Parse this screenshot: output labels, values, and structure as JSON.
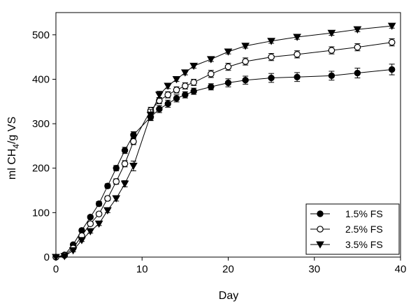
{
  "chart_data": {
    "type": "line",
    "title": "",
    "xlabel": "Day",
    "ylabel_parts": {
      "pre": "ml CH",
      "sub": "4",
      "post": "/g VS"
    },
    "xlim": [
      0,
      40
    ],
    "ylim": [
      0,
      550
    ],
    "xticks": [
      0,
      10,
      20,
      30,
      40
    ],
    "yticks": [
      0,
      100,
      200,
      300,
      400,
      500
    ],
    "grid": false,
    "legend_position": "bottom-right",
    "series": [
      {
        "name": "1.5% FS",
        "marker": "circle-filled",
        "x": [
          0,
          1,
          2,
          3,
          4,
          5,
          6,
          7,
          8,
          9,
          11,
          12,
          13,
          14,
          15,
          16,
          18,
          20,
          22,
          25,
          28,
          32,
          35,
          39
        ],
        "y": [
          0,
          5,
          28,
          60,
          90,
          120,
          160,
          200,
          240,
          275,
          315,
          333,
          345,
          357,
          365,
          373,
          383,
          392,
          398,
          403,
          405,
          408,
          414,
          422
        ],
        "err": [
          0,
          2,
          3,
          4,
          4,
          5,
          5,
          6,
          7,
          7,
          8,
          8,
          8,
          8,
          7,
          7,
          7,
          9,
          9,
          10,
          10,
          10,
          11,
          12
        ]
      },
      {
        "name": "2.5% FS",
        "marker": "circle-open",
        "x": [
          0,
          1,
          2,
          3,
          4,
          5,
          6,
          7,
          8,
          9,
          11,
          12,
          13,
          14,
          15,
          16,
          18,
          20,
          22,
          25,
          28,
          32,
          35,
          39
        ],
        "y": [
          0,
          4,
          20,
          48,
          75,
          97,
          132,
          170,
          210,
          260,
          330,
          352,
          365,
          376,
          385,
          393,
          412,
          428,
          440,
          450,
          456,
          465,
          472,
          483
        ],
        "err": [
          0,
          2,
          3,
          3,
          4,
          4,
          5,
          6,
          7,
          7,
          7,
          7,
          7,
          7,
          7,
          7,
          8,
          8,
          8,
          8,
          8,
          8,
          8,
          8
        ]
      },
      {
        "name": "3.5% FS",
        "marker": "triangle-down-filled",
        "x": [
          0,
          1,
          2,
          3,
          4,
          5,
          6,
          7,
          8,
          9,
          11,
          12,
          13,
          14,
          15,
          16,
          18,
          20,
          22,
          25,
          28,
          32,
          35,
          39
        ],
        "y": [
          0,
          2,
          15,
          38,
          58,
          75,
          105,
          132,
          165,
          205,
          320,
          365,
          385,
          400,
          415,
          430,
          445,
          462,
          475,
          486,
          495,
          504,
          512,
          520
        ],
        "err": [
          0,
          2,
          3,
          3,
          4,
          4,
          5,
          6,
          7,
          11,
          12,
          8,
          6,
          5,
          5,
          5,
          5,
          5,
          5,
          5,
          5,
          5,
          5,
          5
        ]
      }
    ]
  }
}
